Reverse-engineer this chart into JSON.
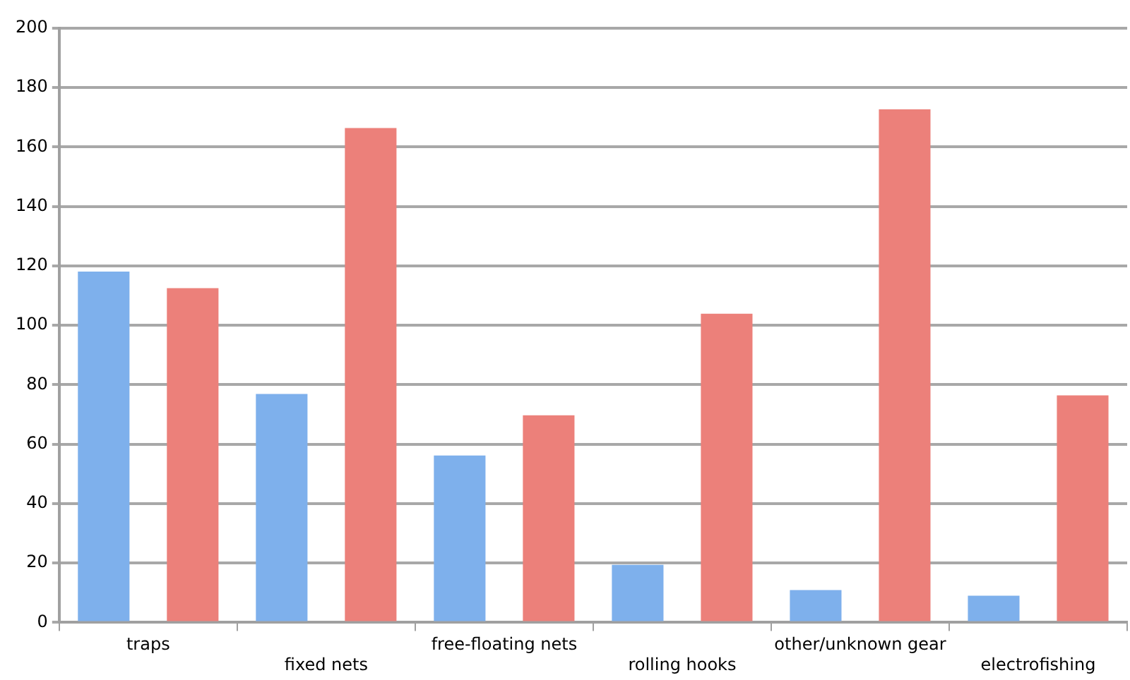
{
  "chart_data": {
    "type": "bar",
    "categories": [
      "traps",
      "fixed nets",
      "free-floating nets",
      "rolling hooks",
      "other/unknown gear",
      "electrofishing"
    ],
    "series": [
      {
        "color": "#7eb0ec",
        "values": [
          118.1,
          76.9,
          56.2,
          19.4,
          10.9,
          9.0
        ]
      },
      {
        "color": "#ec807a",
        "values": [
          112.5,
          166.4,
          69.7,
          103.9,
          172.7,
          76.4
        ]
      }
    ],
    "ylim": [
      0,
      200
    ],
    "yticks": [
      0,
      20,
      40,
      60,
      80,
      100,
      120,
      140,
      160,
      180,
      200
    ],
    "grid": "y",
    "legend": false
  }
}
